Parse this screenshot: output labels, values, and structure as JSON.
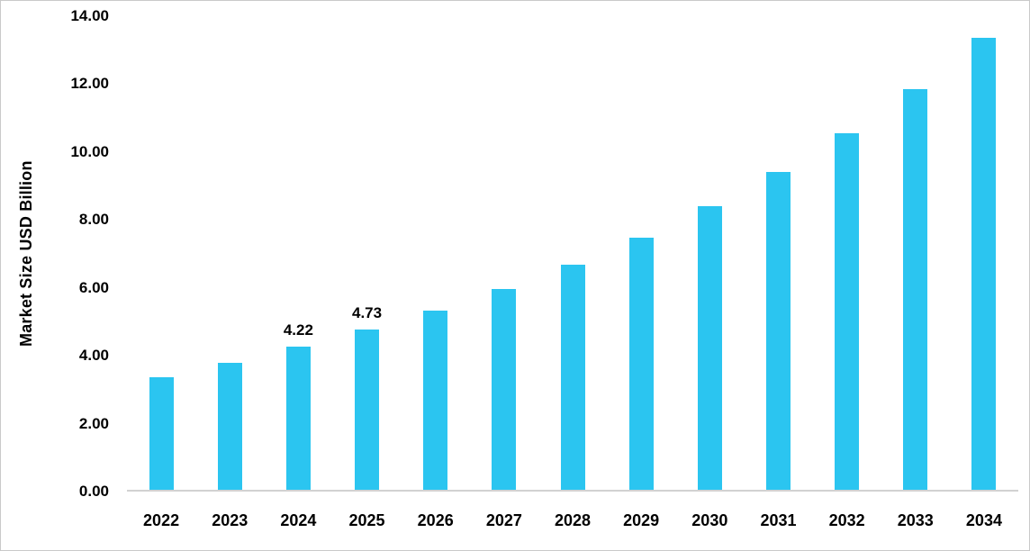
{
  "chart_data": {
    "type": "bar",
    "title": "",
    "xlabel": "",
    "ylabel": "Market Size USD Billion",
    "ylim": [
      0,
      14
    ],
    "ytick_step": 2,
    "ytick_decimals": 2,
    "grid": false,
    "legend": "none",
    "bar_color": "#2bc5f0",
    "categories": [
      "2022",
      "2023",
      "2024",
      "2025",
      "2026",
      "2027",
      "2028",
      "2029",
      "2030",
      "2031",
      "2032",
      "2033",
      "2034"
    ],
    "values": [
      3.32,
      3.76,
      4.22,
      4.73,
      5.3,
      5.94,
      6.66,
      7.46,
      8.38,
      9.4,
      10.55,
      11.85,
      13.35
    ],
    "data_labels": [
      null,
      null,
      "4.22",
      "4.73",
      null,
      null,
      null,
      null,
      null,
      null,
      null,
      null,
      null
    ]
  }
}
